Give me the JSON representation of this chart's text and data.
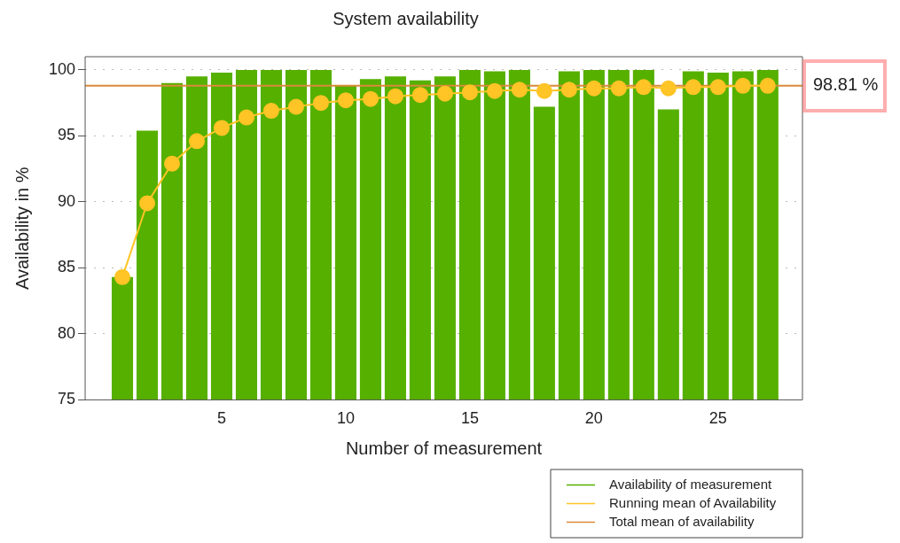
{
  "chart_data": {
    "type": "bar",
    "title": "System availability",
    "xlabel": "Number of measurement",
    "ylabel": "Availability in %",
    "x": [
      1,
      2,
      3,
      4,
      5,
      6,
      7,
      8,
      9,
      10,
      11,
      12,
      13,
      14,
      15,
      16,
      17,
      18,
      19,
      20,
      21,
      22,
      23,
      24,
      25,
      26,
      27
    ],
    "xlim": [
      -0.5,
      28.4
    ],
    "xticks": [
      5,
      10,
      15,
      20,
      25
    ],
    "ylim": [
      75,
      101
    ],
    "yticks": [
      75,
      80,
      85,
      90,
      95,
      100
    ],
    "grid": "y",
    "legend": "bottom right",
    "series": [
      {
        "name": "Availability of measurement",
        "color": "#56b000",
        "values": [
          84.3,
          95.4,
          99.0,
          99.5,
          99.8,
          100.0,
          100.0,
          100.0,
          100.0,
          98.8,
          99.3,
          99.5,
          99.2,
          99.5,
          100.0,
          99.9,
          100.0,
          97.2,
          99.9,
          100.0,
          100.0,
          100.0,
          97.0,
          99.9,
          99.8,
          99.9,
          100.0
        ]
      },
      {
        "name": "Running mean of Availability",
        "type": "line",
        "color": "#ffc425",
        "marker": "circle",
        "values": [
          84.3,
          89.9,
          92.9,
          94.6,
          95.6,
          96.4,
          96.9,
          97.2,
          97.5,
          97.7,
          97.8,
          98.0,
          98.1,
          98.2,
          98.3,
          98.4,
          98.5,
          98.4,
          98.5,
          98.6,
          98.6,
          98.7,
          98.6,
          98.7,
          98.7,
          98.8,
          98.8
        ]
      },
      {
        "name": "Total mean of availability",
        "type": "line",
        "color": "#d98a3a",
        "marker": "none",
        "x": [
          -0.5,
          28.4
        ],
        "values": [
          98.81,
          98.81
        ]
      }
    ],
    "annotations": [
      {
        "text": "98.81 %",
        "x": 28.4,
        "y": 98.81
      }
    ]
  }
}
